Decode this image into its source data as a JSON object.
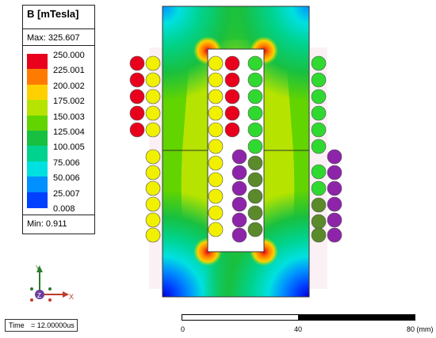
{
  "legend": {
    "title": "B [mTesla]",
    "max_label": "Max: 325.607",
    "min_label": "Min:  0.911",
    "levels": [
      "250.000",
      "225.001",
      "200.002",
      "175.002",
      "150.003",
      "125.004",
      "100.005",
      "75.006",
      "50.006",
      "25.007",
      "0.008"
    ],
    "colors": [
      "#e8001c",
      "#ff7a00",
      "#ffd000",
      "#b6e400",
      "#62d400",
      "#18c040",
      "#00d38e",
      "#00e0e0",
      "#0090ff",
      "#0040ff",
      "#0000d8"
    ]
  },
  "time": {
    "label": "Time",
    "value": "= 12.00000us"
  },
  "scale": {
    "labels": [
      "0",
      "40",
      "80 (mm)"
    ]
  },
  "triad": {
    "x": "X",
    "y": "Y",
    "z": "Z"
  }
}
